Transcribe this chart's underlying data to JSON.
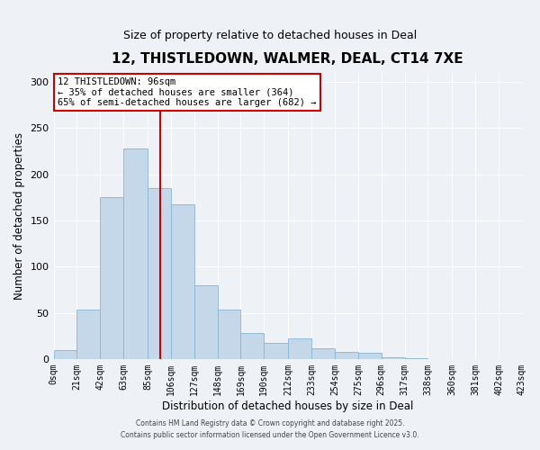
{
  "title": "12, THISTLEDOWN, WALMER, DEAL, CT14 7XE",
  "subtitle": "Size of property relative to detached houses in Deal",
  "xlabel": "Distribution of detached houses by size in Deal",
  "ylabel": "Number of detached properties",
  "bar_color": "#c5d8ea",
  "bar_edge_color": "#8ab4d4",
  "background_color": "#eef2f7",
  "grid_color": "#ffffff",
  "bin_edges": [
    0,
    21,
    42,
    63,
    85,
    106,
    127,
    148,
    169,
    190,
    212,
    233,
    254,
    275,
    296,
    317,
    338,
    360,
    381,
    402,
    423
  ],
  "bin_labels": [
    "0sqm",
    "21sqm",
    "42sqm",
    "63sqm",
    "85sqm",
    "106sqm",
    "127sqm",
    "148sqm",
    "169sqm",
    "190sqm",
    "212sqm",
    "233sqm",
    "254sqm",
    "275sqm",
    "296sqm",
    "317sqm",
    "338sqm",
    "360sqm",
    "381sqm",
    "402sqm",
    "423sqm"
  ],
  "counts": [
    10,
    53,
    175,
    228,
    185,
    167,
    80,
    53,
    28,
    17,
    22,
    12,
    8,
    7,
    2,
    1,
    0,
    0,
    0,
    0
  ],
  "vline_x": 96,
  "vline_color": "#cc0000",
  "annotation_text": "12 THISTLEDOWN: 96sqm\n← 35% of detached houses are smaller (364)\n65% of semi-detached houses are larger (682) →",
  "annotation_box_color": "#ffffff",
  "annotation_box_edge": "#cc0000",
  "yticks": [
    0,
    50,
    100,
    150,
    200,
    250,
    300
  ],
  "ylim": [
    0,
    310
  ],
  "xlim": [
    0,
    423
  ],
  "footer1": "Contains HM Land Registry data © Crown copyright and database right 2025.",
  "footer2": "Contains public sector information licensed under the Open Government Licence v3.0."
}
